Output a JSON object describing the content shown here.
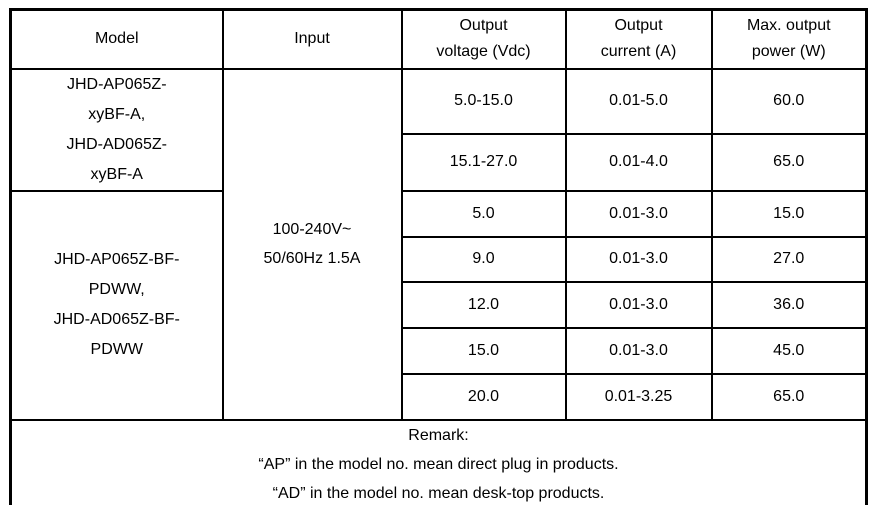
{
  "page": {
    "background_color": "#ffffff",
    "text_color": "#000000",
    "border_color": "#000000"
  },
  "table": {
    "headers": [
      "Model",
      "Input",
      "Output\nvoltage (Vdc)",
      "Output\ncurrent (A)",
      "Max. output\npower (W)"
    ],
    "input": "100-240V~\n50/60Hz 1.5A",
    "groups": [
      {
        "model": "JHD-AP065Z-\nxyBF-A,\nJHD-AD065Z-\nxyBF-A",
        "rows": [
          {
            "voltage": "5.0-15.0",
            "current": "0.01-5.0",
            "power": "60.0"
          },
          {
            "voltage": "15.1-27.0",
            "current": "0.01-4.0",
            "power": "65.0"
          }
        ]
      },
      {
        "model": "JHD-AP065Z-BF-\nPDWW,\nJHD-AD065Z-BF-\nPDWW",
        "rows": [
          {
            "voltage": "5.0",
            "current": "0.01-3.0",
            "power": "15.0"
          },
          {
            "voltage": "9.0",
            "current": "0.01-3.0",
            "power": "27.0"
          },
          {
            "voltage": "12.0",
            "current": "0.01-3.0",
            "power": "36.0"
          },
          {
            "voltage": "15.0",
            "current": "0.01-3.0",
            "power": "45.0"
          },
          {
            "voltage": "20.0",
            "current": "0.01-3.25",
            "power": "65.0"
          }
        ]
      }
    ],
    "remark": {
      "lines": [
        "Remark:",
        "“AP” in the model no. mean direct plug in products.",
        "“AD” in the model no. mean desk-top products."
      ]
    }
  }
}
